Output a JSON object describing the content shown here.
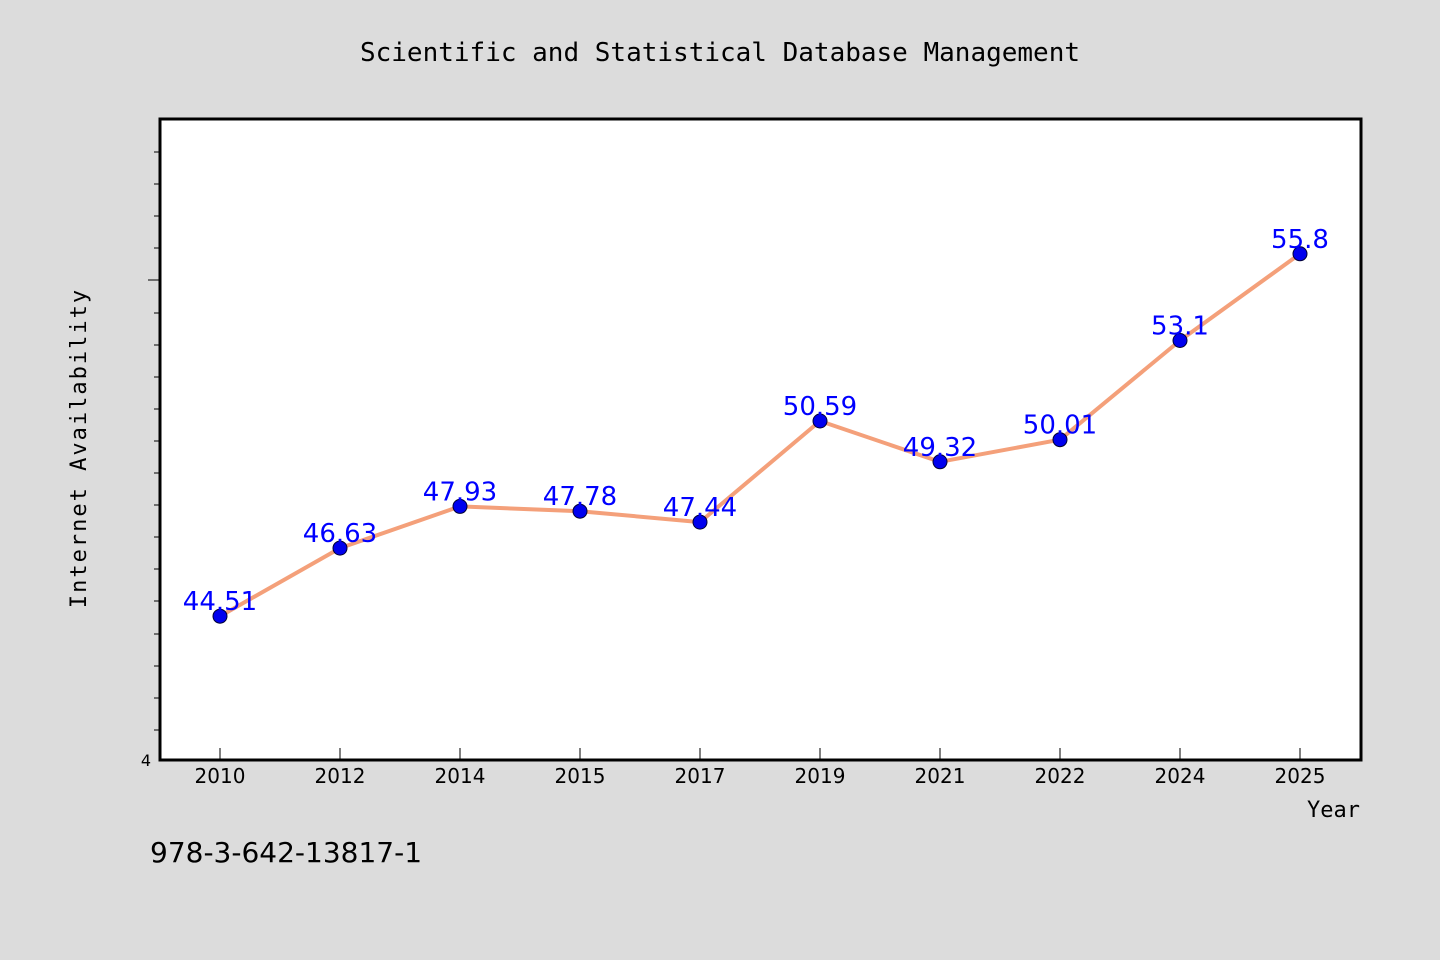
{
  "chart_data": {
    "type": "line",
    "title": "Scientific and Statistical Database Management",
    "xlabel": "Year",
    "ylabel": "Internet Availability",
    "categories": [
      "2010",
      "2012",
      "2014",
      "2015",
      "2017",
      "2019",
      "2021",
      "2022",
      "2024",
      "2025"
    ],
    "series": [
      {
        "values": [
          44.51,
          46.63,
          47.93,
          47.78,
          47.44,
          50.59,
          49.32,
          50.01,
          53.1,
          55.8
        ],
        "labels": [
          "44.51",
          "46.63",
          "47.93",
          "47.78",
          "47.44",
          "50.59",
          "49.32",
          "50.01",
          "53.1",
          "55.8"
        ],
        "line_color": "#f4a07a",
        "marker_color": "#0000ee",
        "label_color": "#0000ff"
      }
    ],
    "ylim": [
      40,
      60
    ],
    "y_tick_label": "4",
    "grid": false,
    "legend": "none"
  },
  "footer": {
    "isbn": "978-3-642-13817-1"
  }
}
